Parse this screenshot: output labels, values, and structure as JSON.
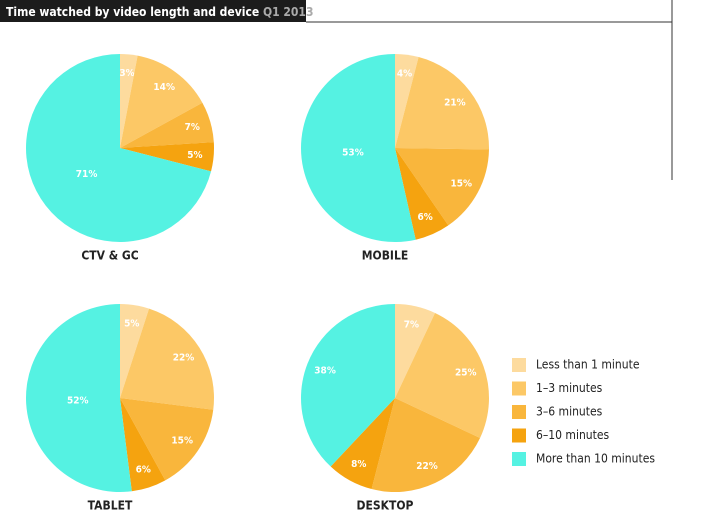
{
  "title": "Time watched by video length and device",
  "period": "Q1 2013",
  "chart_data": [
    {
      "type": "pie",
      "title": "CTV & GC",
      "categories": [
        "Less than 1 minute",
        "1–3 minutes",
        "3–6 minutes",
        "6–10 minutes",
        "More than 10 minutes"
      ],
      "values": [
        3,
        14,
        7,
        5,
        71
      ],
      "value_labels": [
        "3%",
        "14%",
        "7%",
        "5%",
        "71%"
      ],
      "colors": [
        "#fddb9e",
        "#fcc866",
        "#f9b63c",
        "#f5a30f",
        "#55f2e2"
      ]
    },
    {
      "type": "pie",
      "title": "MOBILE",
      "categories": [
        "Less than 1 minute",
        "1–3 minutes",
        "3–6 minutes",
        "6–10 minutes",
        "More than 10 minutes"
      ],
      "values": [
        4,
        21,
        15,
        6,
        53
      ],
      "value_labels": [
        "4%",
        "21%",
        "15%",
        "6%",
        "53%"
      ],
      "colors": [
        "#fddb9e",
        "#fcc866",
        "#f9b63c",
        "#f5a30f",
        "#55f2e2"
      ]
    },
    {
      "type": "pie",
      "title": "TABLET",
      "categories": [
        "Less than 1 minute",
        "1–3 minutes",
        "3–6 minutes",
        "6–10 minutes",
        "More than 10 minutes"
      ],
      "values": [
        5,
        22,
        15,
        6,
        52
      ],
      "value_labels": [
        "5%",
        "22%",
        "15%",
        "6%",
        "52%"
      ],
      "colors": [
        "#fddb9e",
        "#fcc866",
        "#f9b63c",
        "#f5a30f",
        "#55f2e2"
      ]
    },
    {
      "type": "pie",
      "title": "DESKTOP",
      "categories": [
        "Less than 1 minute",
        "1–3 minutes",
        "3–6 minutes",
        "6–10 minutes",
        "More than 10 minutes"
      ],
      "values": [
        7,
        25,
        22,
        8,
        38
      ],
      "value_labels": [
        "7%",
        "25%",
        "22%",
        "8%",
        "38%"
      ],
      "colors": [
        "#fddb9e",
        "#fcc866",
        "#f9b63c",
        "#f5a30f",
        "#55f2e2"
      ]
    }
  ]
}
